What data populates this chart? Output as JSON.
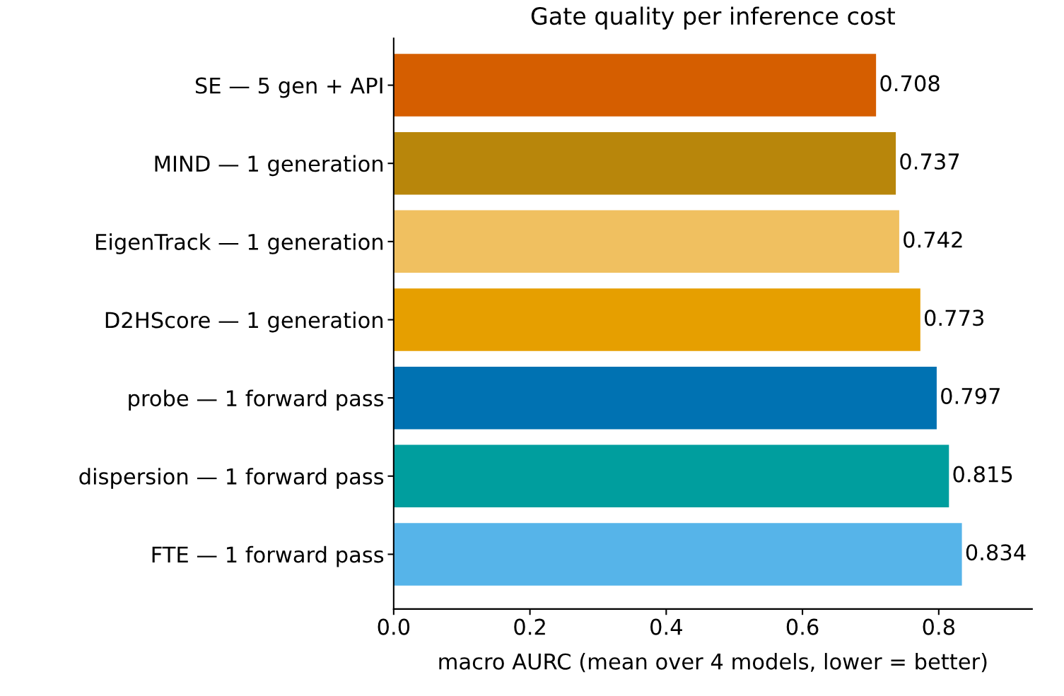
{
  "chart_data": {
    "type": "bar",
    "orientation": "horizontal",
    "title": "Gate quality per inference cost",
    "xlabel": "macro AURC (mean over 4 models, lower = better)",
    "categories": [
      "SE — 5 gen + API",
      "MIND — 1 generation",
      "EigenTrack — 1 generation",
      "D2HScore — 1 generation",
      "probe — 1 forward pass",
      "dispersion — 1 forward pass",
      "FTE — 1 forward pass"
    ],
    "values": [
      0.708,
      0.737,
      0.742,
      0.773,
      0.797,
      0.815,
      0.834
    ],
    "colors": [
      "#d55e00",
      "#b8860b",
      "#f0c060",
      "#e69f00",
      "#0072b2",
      "#009e9e",
      "#56b4e9"
    ],
    "xlim": [
      0,
      0.937
    ],
    "xticks": [
      {
        "value": 0,
        "label": "0.0"
      },
      0.2,
      0.4,
      0.6,
      0.8
    ],
    "data_labels": true,
    "grid": false
  }
}
